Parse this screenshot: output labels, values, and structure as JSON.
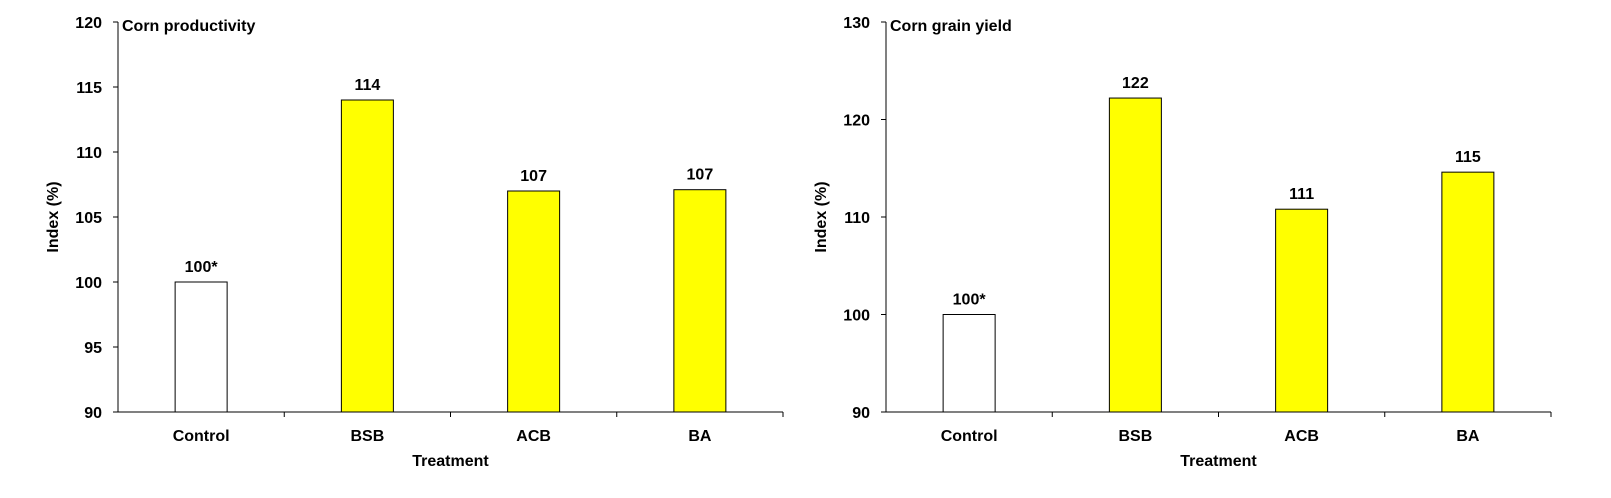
{
  "chart_data": [
    {
      "type": "bar",
      "title": "Corn productivity",
      "xlabel": "Treatment",
      "ylabel": "Index (%)",
      "ylim": [
        90,
        120
      ],
      "yticks": [
        90,
        95,
        100,
        105,
        110,
        115,
        120
      ],
      "categories": [
        "Control",
        "BSB",
        "ACB",
        "BA"
      ],
      "values": [
        100,
        114,
        107,
        107.1
      ],
      "data_labels": [
        "100*",
        "114",
        "107",
        "107"
      ],
      "bar_colors": [
        "#ffffff",
        "#ffff00",
        "#ffff00",
        "#ffff00"
      ],
      "grid": false
    },
    {
      "type": "bar",
      "title": "Corn grain yield",
      "xlabel": "Treatment",
      "ylabel": "Index (%)",
      "ylim": [
        90,
        130
      ],
      "yticks": [
        90,
        100,
        110,
        120,
        130
      ],
      "categories": [
        "Control",
        "BSB",
        "ACB",
        "BA"
      ],
      "values": [
        100,
        122.2,
        110.8,
        114.6
      ],
      "data_labels": [
        "100*",
        "122",
        "111",
        "115"
      ],
      "bar_colors": [
        "#ffffff",
        "#ffff00",
        "#ffff00",
        "#ffff00"
      ],
      "grid": false
    }
  ]
}
